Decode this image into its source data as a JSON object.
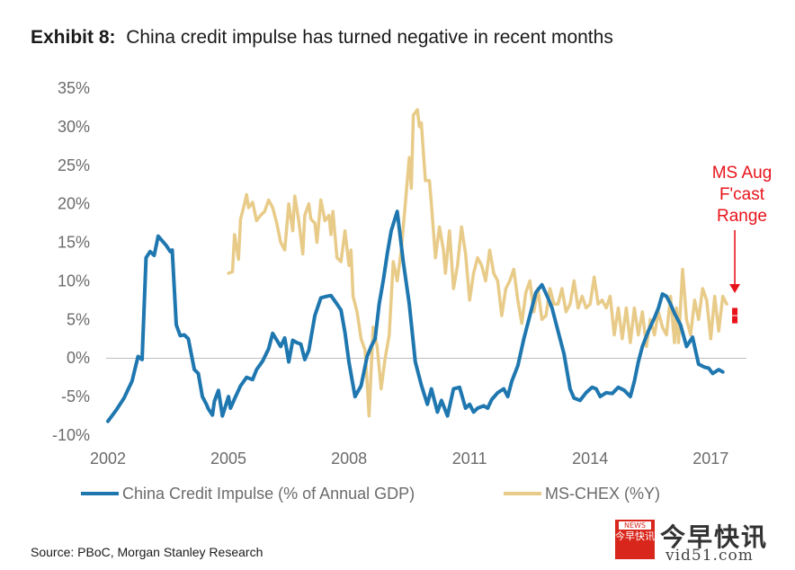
{
  "title": {
    "bold": "Exhibit 8:",
    "text": "China credit impulse has turned negative in recent months"
  },
  "source": "Source: PBoC, Morgan Stanley Research",
  "watermark": {
    "box_top": "NEWS",
    "box_text": "今早快讯",
    "cn": "今早快讯",
    "url": "vid51.com"
  },
  "chart_data": {
    "type": "line",
    "title": "China credit impulse has turned negative in recent months",
    "xlabel": "",
    "ylabel": "",
    "xlim": [
      2002,
      2017.8
    ],
    "ylim": [
      -10,
      35
    ],
    "y_ticks": [
      35,
      30,
      25,
      20,
      15,
      10,
      5,
      0,
      -5,
      -10
    ],
    "y_tick_labels": [
      "35%",
      "30%",
      "25%",
      "20%",
      "15%",
      "10%",
      "5%",
      "0%",
      "-5%",
      "-10%"
    ],
    "x_ticks": [
      2002,
      2005,
      2008,
      2011,
      2014,
      2017
    ],
    "x_tick_labels": [
      "2002",
      "2005",
      "2008",
      "2011",
      "2014",
      "2017"
    ],
    "legend_position": "bottom",
    "series": [
      {
        "name": "China Credit Impulse (% of Annual GDP)",
        "color": "#1f77b0",
        "x": [
          2002.0,
          2002.2,
          2002.4,
          2002.6,
          2002.75,
          2002.85,
          2002.95,
          2003.05,
          2003.15,
          2003.25,
          2003.45,
          2003.55,
          2003.6,
          2003.7,
          2003.8,
          2003.9,
          2004.0,
          2004.15,
          2004.25,
          2004.35,
          2004.45,
          2004.5,
          2004.6,
          2004.65,
          2004.75,
          2004.85,
          2005.0,
          2005.05,
          2005.15,
          2005.3,
          2005.45,
          2005.6,
          2005.7,
          2005.85,
          2006.0,
          2006.1,
          2006.3,
          2006.4,
          2006.5,
          2006.6,
          2006.7,
          2006.8,
          2006.9,
          2007.0,
          2007.15,
          2007.3,
          2007.45,
          2007.55,
          2007.7,
          2007.8,
          2007.9,
          2008.0,
          2008.15,
          2008.3,
          2008.45,
          2008.55,
          2008.65,
          2008.75,
          2008.85,
          2008.95,
          2009.05,
          2009.2,
          2009.35,
          2009.5,
          2009.65,
          2009.8,
          2009.95,
          2010.05,
          2010.2,
          2010.3,
          2010.45,
          2010.6,
          2010.75,
          2010.9,
          2011.0,
          2011.1,
          2011.2,
          2011.35,
          2011.45,
          2011.55,
          2011.7,
          2011.85,
          2011.95,
          2012.05,
          2012.2,
          2012.35,
          2012.5,
          2012.65,
          2012.8,
          2012.95,
          2013.05,
          2013.2,
          2013.35,
          2013.5,
          2013.6,
          2013.75,
          2013.9,
          2014.05,
          2014.15,
          2014.25,
          2014.4,
          2014.55,
          2014.7,
          2014.85,
          2015.0,
          2015.1,
          2015.2,
          2015.3,
          2015.45,
          2015.6,
          2015.7,
          2015.8,
          2015.9,
          2016.0,
          2016.1,
          2016.25,
          2016.4,
          2016.55,
          2016.7,
          2016.85,
          2016.95,
          2017.05,
          2017.2,
          2017.3
        ],
        "values": [
          -8.2,
          -6.8,
          -5.2,
          -3.0,
          0.2,
          -0.2,
          13.0,
          13.8,
          13.3,
          15.8,
          14.6,
          13.8,
          14.0,
          4.3,
          2.9,
          3.0,
          2.5,
          -1.5,
          -2.0,
          -5.0,
          -6.0,
          -6.6,
          -7.4,
          -5.6,
          -4.2,
          -7.5,
          -5.0,
          -6.5,
          -5.3,
          -3.6,
          -2.5,
          -2.8,
          -1.5,
          -0.4,
          1.2,
          3.2,
          1.5,
          2.6,
          -0.5,
          2.3,
          2.0,
          1.8,
          -0.2,
          1.0,
          5.5,
          7.8,
          8.0,
          8.1,
          7.0,
          6.2,
          3.3,
          -0.6,
          -5.0,
          -3.6,
          0.2,
          1.5,
          2.5,
          7.0,
          10.0,
          13.5,
          16.5,
          19.0,
          12.5,
          7.0,
          -0.5,
          -3.5,
          -6.0,
          -4.0,
          -7.0,
          -5.5,
          -7.5,
          -4.0,
          -3.8,
          -6.5,
          -6.0,
          -7.0,
          -6.5,
          -6.2,
          -6.5,
          -5.4,
          -4.5,
          -4.0,
          -5.0,
          -3.0,
          -1.0,
          2.5,
          5.5,
          8.5,
          9.5,
          7.8,
          6.5,
          3.5,
          0.5,
          -4.0,
          -5.2,
          -5.5,
          -4.5,
          -3.8,
          -4.0,
          -5.0,
          -4.5,
          -4.6,
          -3.8,
          -4.2,
          -5.0,
          -3.0,
          -0.5,
          1.5,
          3.5,
          5.2,
          6.5,
          8.3,
          8.0,
          7.0,
          5.8,
          4.3,
          1.5,
          2.7,
          -0.8,
          -1.2,
          -1.3,
          -2.0,
          -1.5,
          -1.8
        ]
      },
      {
        "name": "MS-CHEX (%Y)",
        "color": "#e8cb88",
        "x": [
          2005.0,
          2005.1,
          2005.15,
          2005.25,
          2005.3,
          2005.4,
          2005.45,
          2005.5,
          2005.6,
          2005.7,
          2005.8,
          2005.9,
          2006.0,
          2006.1,
          2006.2,
          2006.3,
          2006.4,
          2006.5,
          2006.6,
          2006.65,
          2006.75,
          2006.85,
          2006.9,
          2007.0,
          2007.05,
          2007.15,
          2007.2,
          2007.3,
          2007.4,
          2007.5,
          2007.55,
          2007.6,
          2007.7,
          2007.8,
          2007.9,
          2008.0,
          2008.05,
          2008.1,
          2008.2,
          2008.3,
          2008.4,
          2008.5,
          2008.6,
          2008.7,
          2008.8,
          2008.9,
          2009.0,
          2009.1,
          2009.2,
          2009.3,
          2009.4,
          2009.5,
          2009.55,
          2009.6,
          2009.7,
          2009.75,
          2009.8,
          2009.9,
          2010.0,
          2010.05,
          2010.15,
          2010.25,
          2010.35,
          2010.4,
          2010.5,
          2010.6,
          2010.7,
          2010.8,
          2010.9,
          2011.0,
          2011.1,
          2011.2,
          2011.3,
          2011.4,
          2011.5,
          2011.6,
          2011.7,
          2011.8,
          2011.9,
          2012.0,
          2012.1,
          2012.2,
          2012.3,
          2012.4,
          2012.5,
          2012.6,
          2012.7,
          2012.8,
          2012.9,
          2013.0,
          2013.1,
          2013.2,
          2013.3,
          2013.4,
          2013.5,
          2013.6,
          2013.7,
          2013.8,
          2013.9,
          2014.0,
          2014.1,
          2014.2,
          2014.3,
          2014.4,
          2014.5,
          2014.6,
          2014.7,
          2014.8,
          2014.9,
          2015.0,
          2015.1,
          2015.2,
          2015.3,
          2015.4,
          2015.5,
          2015.6,
          2015.7,
          2015.8,
          2015.9,
          2016.0,
          2016.05,
          2016.1,
          2016.15,
          2016.2,
          2016.3,
          2016.4,
          2016.5,
          2016.6,
          2016.7,
          2016.8,
          2016.9,
          2017.0,
          2017.1,
          2017.2,
          2017.3,
          2017.4
        ],
        "values": [
          11.0,
          11.2,
          16.0,
          12.8,
          18.0,
          20.0,
          21.2,
          19.5,
          20.2,
          17.8,
          18.5,
          19.0,
          20.5,
          19.5,
          17.5,
          15.0,
          14.0,
          20.0,
          16.5,
          21.0,
          17.8,
          13.5,
          18.5,
          20.0,
          18.0,
          17.5,
          15.0,
          20.5,
          17.8,
          18.5,
          16.0,
          19.0,
          13.0,
          12.5,
          16.5,
          12.0,
          14.0,
          8.0,
          6.0,
          2.5,
          1.0,
          -7.5,
          4.0,
          1.5,
          -4.0,
          0.0,
          3.0,
          12.5,
          10.0,
          14.0,
          20.0,
          26.0,
          22.0,
          31.5,
          32.2,
          30.0,
          30.5,
          23.0,
          23.0,
          20.0,
          13.0,
          17.0,
          14.0,
          11.0,
          16.5,
          9.0,
          12.0,
          17.0,
          13.5,
          7.5,
          11.0,
          13.0,
          12.0,
          10.0,
          14.0,
          11.0,
          10.0,
          5.5,
          9.0,
          10.0,
          11.5,
          7.5,
          4.5,
          8.5,
          10.0,
          6.0,
          9.0,
          5.0,
          5.5,
          9.0,
          7.0,
          7.0,
          9.0,
          6.0,
          7.0,
          10.0,
          6.5,
          8.0,
          6.5,
          7.0,
          10.5,
          7.0,
          7.5,
          6.5,
          8.0,
          3.0,
          6.5,
          2.5,
          6.5,
          2.0,
          6.5,
          3.0,
          6.0,
          1.5,
          5.0,
          3.0,
          6.0,
          4.0,
          3.0,
          8.0,
          5.0,
          2.0,
          6.5,
          2.0,
          11.5,
          5.0,
          3.0,
          7.5,
          5.0,
          9.0,
          7.5,
          2.5,
          8.0,
          3.5,
          8.0,
          7.0
        ]
      }
    ],
    "annotation": {
      "lines": [
        "MS Aug",
        "F'cast",
        "Range"
      ],
      "color": "#e8141b",
      "x": 2017.6,
      "range": [
        4.5,
        6.5
      ]
    }
  }
}
